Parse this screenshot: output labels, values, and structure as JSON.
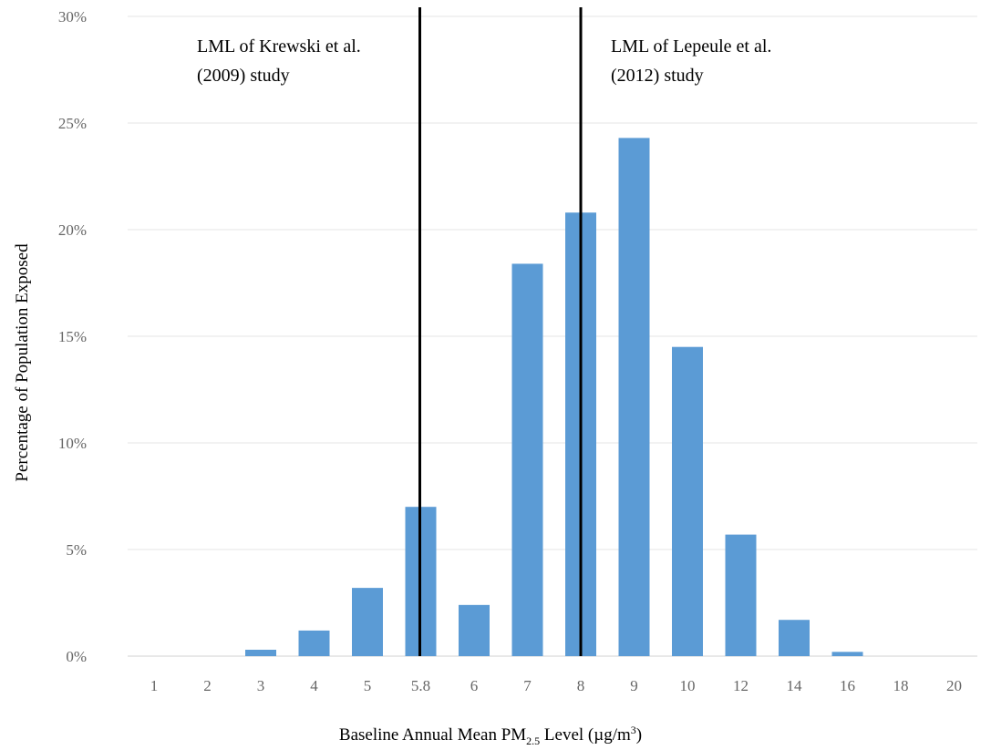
{
  "chart_data": {
    "type": "bar",
    "categories": [
      "1",
      "2",
      "3",
      "4",
      "5",
      "5.8",
      "6",
      "7",
      "8",
      "9",
      "10",
      "12",
      "14",
      "16",
      "18",
      "20"
    ],
    "series": [
      {
        "values": [
          0,
          0,
          0.3,
          1.2,
          3.2,
          7.0,
          2.4,
          18.4,
          20.8,
          24.3,
          14.5,
          5.7,
          1.7,
          0.2,
          0,
          0
        ]
      }
    ],
    "title": "",
    "xlabel": "Baseline Annual Mean PM",
    "xlabel_sub": "2.5",
    "xlabel_rest": " Level (µg/m",
    "xlabel_sup": "3",
    "xlabel_end": ")",
    "ylabel": "Percentage of Population Exposed",
    "ylim": [
      0,
      30
    ],
    "yticks": [
      0,
      5,
      10,
      15,
      20,
      25,
      30
    ],
    "ytick_labels": [
      "0%",
      "5%",
      "10%",
      "15%",
      "20%",
      "25%",
      "30%"
    ],
    "grid": "horizontal",
    "bar_color": "#5b9bd5",
    "vertical_lines": [
      {
        "at": "5.8",
        "line1": "LML  of Krewski et al.",
        "line2": "(2009) study"
      },
      {
        "at": "8",
        "line1": "LML  of Lepeule et al.",
        "line2": "(2012) study"
      }
    ]
  }
}
